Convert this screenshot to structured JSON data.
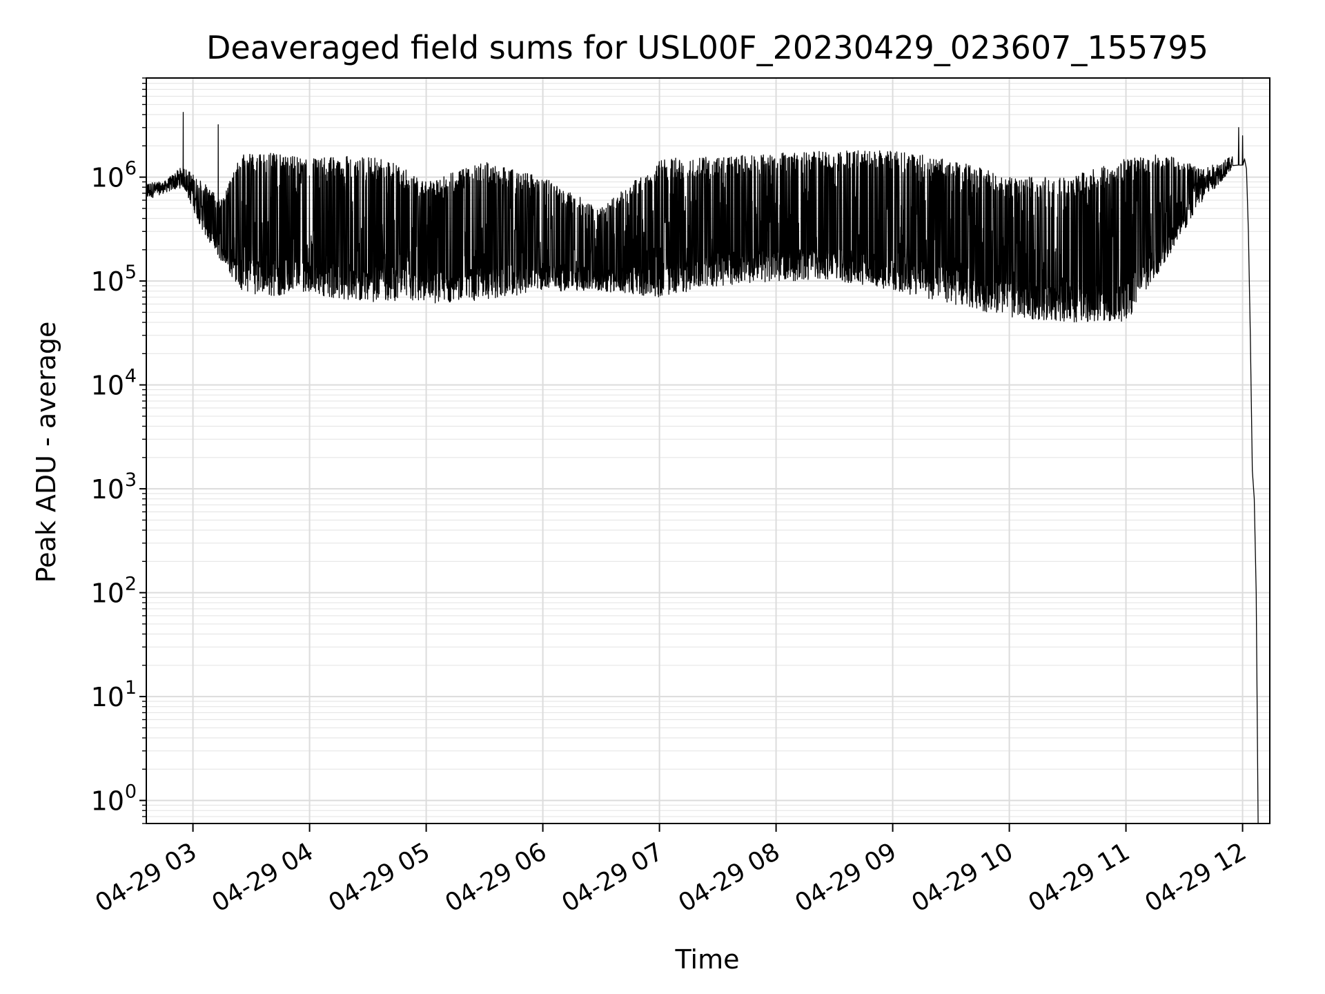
{
  "chart_data": {
    "type": "line",
    "title": "Deaveraged field sums for USL00F_20230429_023607_155795",
    "xlabel": "Time",
    "ylabel": "Peak ADU - average",
    "yscale": "log",
    "xlim": [
      "04-29 02:36",
      "04-29 12:14"
    ],
    "ylim": [
      0.6,
      9000000
    ],
    "grid": true,
    "x_ticks": [
      "04-29 03",
      "04-29 04",
      "04-29 05",
      "04-29 06",
      "04-29 07",
      "04-29 08",
      "04-29 09",
      "04-29 10",
      "04-29 11",
      "04-29 12"
    ],
    "y_ticks": [
      {
        "base": "10",
        "exp": "0"
      },
      {
        "base": "10",
        "exp": "1"
      },
      {
        "base": "10",
        "exp": "2"
      },
      {
        "base": "10",
        "exp": "3"
      },
      {
        "base": "10",
        "exp": "4"
      },
      {
        "base": "10",
        "exp": "5"
      },
      {
        "base": "10",
        "exp": "6"
      }
    ],
    "series": [
      {
        "color": "#000000",
        "envelope": [
          {
            "t": "04-29 02:36",
            "low": 600000,
            "high": 900000
          },
          {
            "t": "04-29 02:45",
            "low": 700000,
            "high": 900000
          },
          {
            "t": "04-29 02:55",
            "low": 800000,
            "high": 1300000
          },
          {
            "t": "04-29 03:05",
            "low": 300000,
            "high": 900000
          },
          {
            "t": "04-29 03:15",
            "low": 150000,
            "high": 600000
          },
          {
            "t": "04-29 03:25",
            "low": 80000,
            "high": 1700000
          },
          {
            "t": "04-29 03:40",
            "low": 70000,
            "high": 1700000
          },
          {
            "t": "04-29 04:00",
            "low": 80000,
            "high": 1500000
          },
          {
            "t": "04-29 04:20",
            "low": 60000,
            "high": 1600000
          },
          {
            "t": "04-29 04:40",
            "low": 65000,
            "high": 1500000
          },
          {
            "t": "04-29 05:00",
            "low": 60000,
            "high": 900000
          },
          {
            "t": "04-29 05:30",
            "low": 65000,
            "high": 1400000
          },
          {
            "t": "04-29 06:00",
            "low": 80000,
            "high": 1000000
          },
          {
            "t": "04-29 06:30",
            "low": 80000,
            "high": 500000
          },
          {
            "t": "04-29 07:00",
            "low": 70000,
            "high": 1500000
          },
          {
            "t": "04-29 07:30",
            "low": 90000,
            "high": 1600000
          },
          {
            "t": "04-29 08:00",
            "low": 100000,
            "high": 1700000
          },
          {
            "t": "04-29 08:30",
            "low": 100000,
            "high": 1800000
          },
          {
            "t": "04-29 09:00",
            "low": 80000,
            "high": 1800000
          },
          {
            "t": "04-29 09:30",
            "low": 60000,
            "high": 1500000
          },
          {
            "t": "04-29 10:00",
            "low": 45000,
            "high": 1000000
          },
          {
            "t": "04-29 10:30",
            "low": 40000,
            "high": 1000000
          },
          {
            "t": "04-29 11:00",
            "low": 40000,
            "high": 1500000
          },
          {
            "t": "04-29 11:20",
            "low": 150000,
            "high": 1700000
          },
          {
            "t": "04-29 11:40",
            "low": 600000,
            "high": 1200000
          },
          {
            "t": "04-29 11:55",
            "low": 1200000,
            "high": 1600000
          }
        ],
        "spikes": [
          {
            "t": "04-29 02:55",
            "value": 4200000
          },
          {
            "t": "04-29 03:13",
            "value": 3200000
          },
          {
            "t": "04-29 11:58",
            "value": 3000000
          },
          {
            "t": "04-29 12:00",
            "value": 2500000
          }
        ],
        "tail": [
          {
            "t": "04-29 12:01",
            "value": 1500000
          },
          {
            "t": "04-29 12:02",
            "value": 1200000
          },
          {
            "t": "04-29 12:03",
            "value": 300000
          },
          {
            "t": "04-29 12:04",
            "value": 30000
          },
          {
            "t": "04-29 12:05",
            "value": 1500
          },
          {
            "t": "04-29 12:06",
            "value": 800
          },
          {
            "t": "04-29 12:07",
            "value": 100
          },
          {
            "t": "04-29 12:08",
            "value": 0.6
          }
        ]
      }
    ]
  }
}
